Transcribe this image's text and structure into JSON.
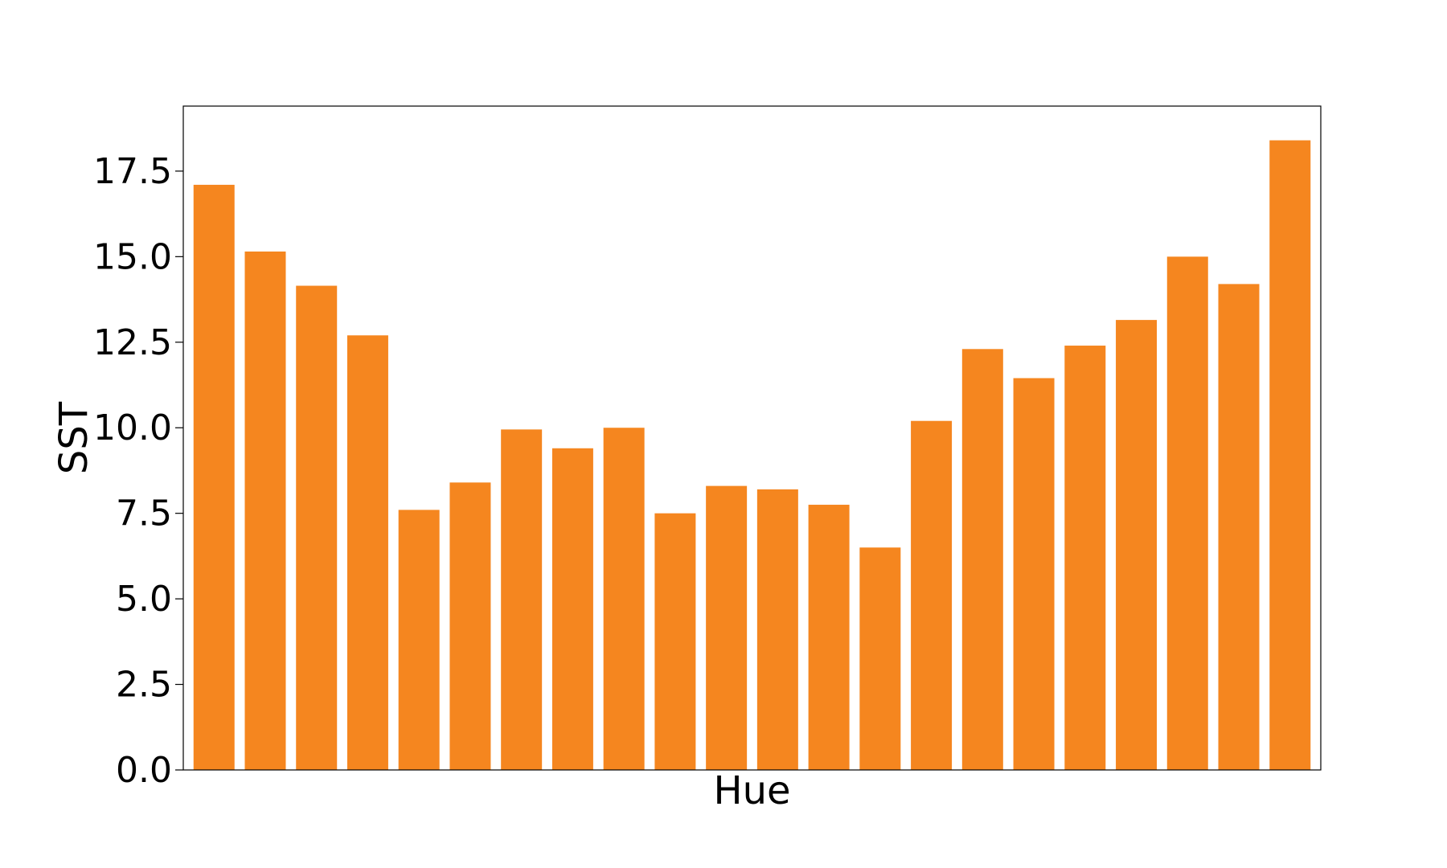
{
  "chart_data": {
    "type": "bar",
    "xlabel": "Hue",
    "ylabel": "SST",
    "ylim": [
      0,
      19.4
    ],
    "yticks": [
      "0.0",
      "2.5",
      "5.0",
      "7.5",
      "10.0",
      "12.5",
      "15.0",
      "17.5"
    ],
    "grid": false,
    "bar_color": "#f5861f",
    "values": [
      17.1,
      15.15,
      14.15,
      12.7,
      7.6,
      8.4,
      9.95,
      9.4,
      10.0,
      7.5,
      8.3,
      8.2,
      7.75,
      6.5,
      10.2,
      12.3,
      11.45,
      12.4,
      13.15,
      15.0,
      14.2,
      18.4
    ]
  }
}
